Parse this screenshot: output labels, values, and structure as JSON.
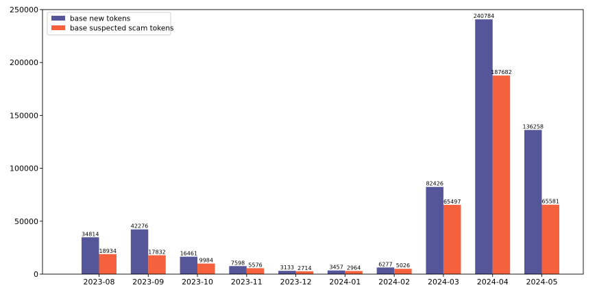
{
  "chart_data": {
    "type": "bar",
    "categories": [
      "2023-08",
      "2023-09",
      "2023-10",
      "2023-11",
      "2023-12",
      "2024-01",
      "2024-02",
      "2024-03",
      "2024-04",
      "2024-05"
    ],
    "series": [
      {
        "name": "base new tokens",
        "color": "#55559a",
        "values": [
          34814,
          42276,
          16461,
          7598,
          3133,
          3457,
          6277,
          82426,
          240784,
          136258
        ]
      },
      {
        "name": "base suspected scam tokens",
        "color": "#f4613c",
        "values": [
          18934,
          17832,
          9984,
          5576,
          2714,
          2964,
          5026,
          65497,
          187682,
          65581
        ]
      }
    ],
    "title": "",
    "xlabel": "",
    "ylabel": "",
    "ylim": [
      0,
      250000
    ],
    "yticks": [
      0,
      50000,
      100000,
      150000,
      200000,
      250000
    ],
    "grid": false,
    "legend_position": "top-left",
    "data_labels": true
  }
}
